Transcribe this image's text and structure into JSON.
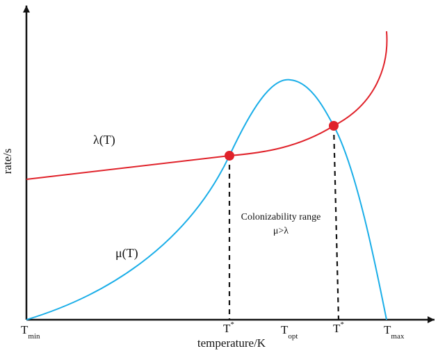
{
  "axes": {
    "y_title": "rate/s",
    "x_title": "temperature/K"
  },
  "curves": {
    "lambda": {
      "label": "λ(T)",
      "color": "#e0222a"
    },
    "mu": {
      "label": "μ(T)",
      "color": "#1aaee8"
    }
  },
  "points_color": "#e0222a",
  "x_ticks": {
    "t_min": {
      "main": "T",
      "sub": "min"
    },
    "t_star_1": {
      "main": "T",
      "sup": "*"
    },
    "t_opt": {
      "main": "T",
      "sub": "opt"
    },
    "t_star_2": {
      "main": "T",
      "sup": "*"
    },
    "t_max": {
      "main": "T",
      "sub": "max"
    }
  },
  "annotation": {
    "line1": "Colonizability range",
    "line2": "μ>λ"
  }
}
